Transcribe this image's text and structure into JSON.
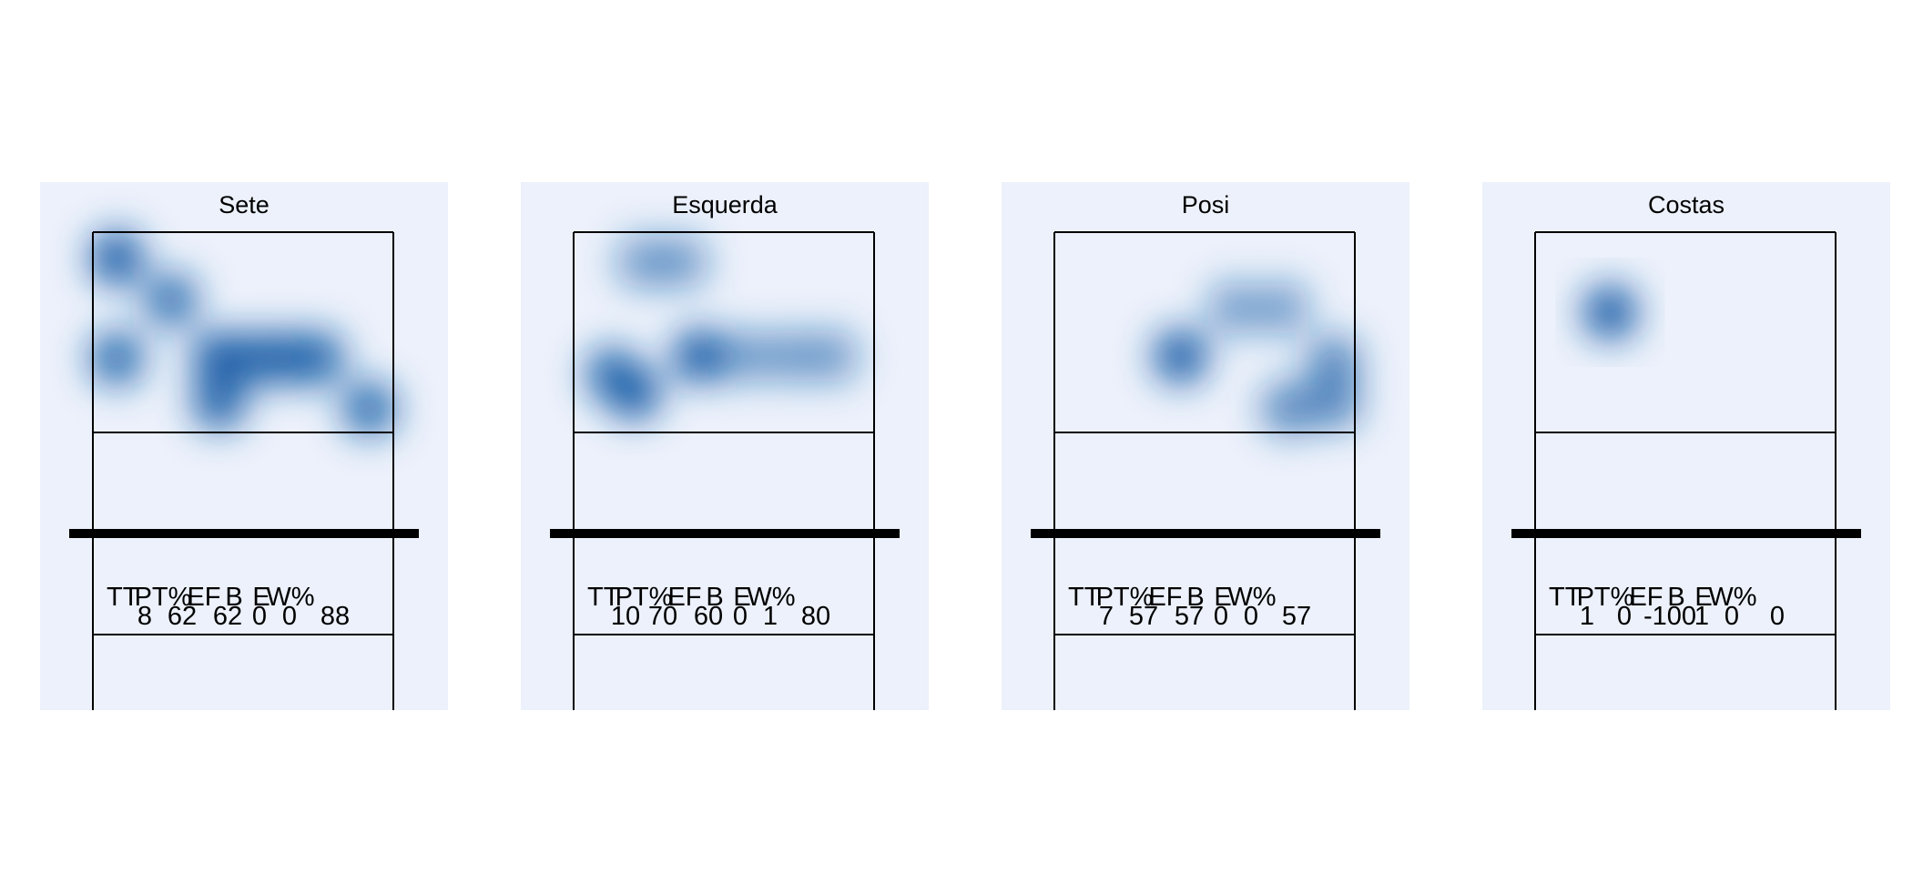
{
  "chart_data": {
    "type": "heatmap",
    "stat_headers": [
      "TT",
      "PT%",
      "EF",
      "B",
      "E",
      "W%"
    ],
    "colors": {
      "background": "#ffffff",
      "panel": "#ecf1fb",
      "heat": "#1a5fa8",
      "lines": "#000000"
    },
    "panels": [
      {
        "title": "Sete",
        "stats": [
          "8",
          "62",
          "62",
          "0",
          "0",
          "88"
        ],
        "hotspots": [
          {
            "x": 0.08,
            "y": 0.87,
            "w": 1.0
          },
          {
            "x": 0.26,
            "y": 0.66,
            "w": 0.85
          },
          {
            "x": 0.08,
            "y": 0.37,
            "w": 0.9
          },
          {
            "x": 0.42,
            "y": 0.37,
            "w": 1.0
          },
          {
            "x": 0.54,
            "y": 0.37,
            "w": 0.95
          },
          {
            "x": 0.65,
            "y": 0.37,
            "w": 0.95
          },
          {
            "x": 0.75,
            "y": 0.37,
            "w": 0.9
          },
          {
            "x": 0.42,
            "y": 0.15,
            "w": 0.95
          },
          {
            "x": 0.92,
            "y": 0.12,
            "w": 0.9
          }
        ]
      },
      {
        "title": "Esquerda",
        "stats": [
          "10",
          "70",
          "60",
          "0",
          "1",
          "80"
        ],
        "hotspots": [
          {
            "x": 0.23,
            "y": 0.85,
            "w": 0.55
          },
          {
            "x": 0.36,
            "y": 0.85,
            "w": 0.55
          },
          {
            "x": 0.13,
            "y": 0.29,
            "w": 0.9
          },
          {
            "x": 0.2,
            "y": 0.2,
            "w": 1.0
          },
          {
            "x": 0.42,
            "y": 0.38,
            "w": 1.0
          },
          {
            "x": 0.57,
            "y": 0.38,
            "w": 0.55
          },
          {
            "x": 0.72,
            "y": 0.38,
            "w": 0.55
          },
          {
            "x": 0.86,
            "y": 0.38,
            "w": 0.55
          }
        ]
      },
      {
        "title": "Posi",
        "stats": [
          "7",
          "57",
          "57",
          "0",
          "0",
          "57"
        ],
        "hotspots": [
          {
            "x": 0.42,
            "y": 0.38,
            "w": 1.0
          },
          {
            "x": 0.6,
            "y": 0.62,
            "w": 0.55
          },
          {
            "x": 0.76,
            "y": 0.62,
            "w": 0.55
          },
          {
            "x": 0.93,
            "y": 0.35,
            "w": 0.7
          },
          {
            "x": 0.93,
            "y": 0.15,
            "w": 0.7
          },
          {
            "x": 0.78,
            "y": 0.12,
            "w": 0.7
          }
        ]
      },
      {
        "title": "Costas",
        "stats": [
          "1",
          "0",
          "-100",
          "1",
          "0",
          "0"
        ],
        "hotspots": [
          {
            "x": 0.25,
            "y": 0.6,
            "w": 1.0
          }
        ]
      }
    ]
  }
}
